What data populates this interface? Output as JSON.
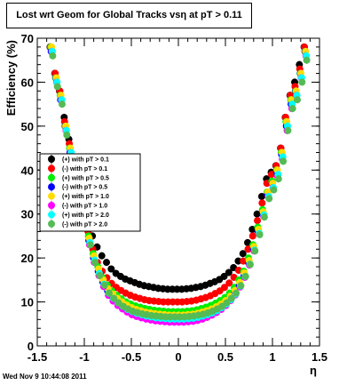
{
  "page": {
    "title": "Lost wrt Geom for Global Tracks vsη at pT > 0.11",
    "footer": "Wed Nov  9 10:44:08 2011"
  },
  "chart_data": {
    "type": "scatter",
    "title": "Lost wrt Geom for Global Tracks vsη at pT > 0.11",
    "xlabel": "η",
    "ylabel": "Efficiency (%)",
    "xlim": [
      -1.5,
      1.5
    ],
    "ylim": [
      0,
      70
    ],
    "xticks": [
      -1.5,
      -1,
      -0.5,
      0,
      0.5,
      1,
      1.5
    ],
    "xtick_labels": [
      "-1.5",
      "-1",
      "-0.5",
      "0",
      "0.5",
      "1",
      "1.5"
    ],
    "yticks": [
      0,
      10,
      20,
      30,
      40,
      50,
      60,
      70
    ],
    "ytick_labels": [
      "0",
      "10",
      "20",
      "30",
      "40",
      "50",
      "60",
      "70"
    ],
    "grid": false,
    "legend_position": "left-middle",
    "x": [
      -1.35,
      -1.3,
      -1.25,
      -1.2,
      -1.15,
      -1.1,
      -1.05,
      -1.0,
      -0.95,
      -0.9,
      -0.85,
      -0.8,
      -0.75,
      -0.7,
      -0.65,
      -0.6,
      -0.55,
      -0.5,
      -0.45,
      -0.4,
      -0.35,
      -0.3,
      -0.25,
      -0.2,
      -0.15,
      -0.1,
      -0.05,
      0.0,
      0.05,
      0.1,
      0.15,
      0.2,
      0.25,
      0.3,
      0.35,
      0.4,
      0.45,
      0.5,
      0.55,
      0.6,
      0.65,
      0.7,
      0.75,
      0.8,
      0.85,
      0.9,
      0.95,
      1.0,
      1.05,
      1.1,
      1.15,
      1.2,
      1.25,
      1.3,
      1.35
    ],
    "series": [
      {
        "name": "(+) with pT > 0.1",
        "color": "#000000",
        "values": [
          68,
          62,
          58,
          52,
          47,
          42,
          37,
          32,
          28,
          25,
          22.5,
          20.5,
          19,
          17.5,
          16.5,
          15.8,
          15.2,
          14.8,
          14.4,
          14,
          13.7,
          13.5,
          13.3,
          13.1,
          13,
          12.9,
          12.9,
          12.9,
          12.9,
          13,
          13.1,
          13.3,
          13.5,
          13.8,
          14.2,
          14.6,
          15.1,
          15.8,
          16.7,
          17.8,
          19.3,
          21,
          23.5,
          26.5,
          30,
          34,
          38,
          39.5,
          41,
          45,
          52,
          57,
          60,
          64,
          68
        ]
      },
      {
        "name": "(-) with pT > 0.1",
        "color": "#ff0000",
        "values": [
          68,
          62,
          58,
          51,
          46,
          41,
          35,
          30,
          26,
          22,
          19,
          17,
          15.5,
          14.2,
          13.3,
          12.6,
          12,
          11.5,
          11.1,
          10.8,
          10.5,
          10.3,
          10.2,
          10.1,
          10,
          10,
          10,
          10,
          10,
          10.1,
          10.2,
          10.4,
          10.7,
          11,
          11.4,
          11.9,
          12.5,
          13.3,
          14.3,
          15.6,
          17.2,
          19.3,
          22,
          25,
          28.5,
          32.5,
          37,
          39,
          41,
          45,
          52,
          57,
          59,
          63,
          68
        ]
      },
      {
        "name": "(+) with pT > 0.5",
        "color": "#00ee00",
        "values": [
          68,
          61,
          57,
          50,
          45,
          40,
          34,
          29,
          25,
          21,
          18,
          15.5,
          13.8,
          12.5,
          11.5,
          10.7,
          10,
          9.5,
          9.1,
          8.8,
          8.5,
          8.3,
          8.1,
          8,
          7.9,
          7.8,
          7.8,
          7.8,
          7.8,
          7.9,
          8,
          8.2,
          8.5,
          8.8,
          9.2,
          9.7,
          10.3,
          11,
          12,
          13.3,
          15,
          17,
          20,
          23,
          27,
          31,
          35,
          37.5,
          40,
          44,
          51,
          56,
          58,
          62,
          67
        ]
      },
      {
        "name": "(-) with pT > 0.5",
        "color": "#0000ff",
        "values": [
          67,
          61,
          56,
          50,
          44,
          39,
          33,
          28,
          24,
          20,
          17,
          14.5,
          12.5,
          11.2,
          10.2,
          9.4,
          8.8,
          8.3,
          7.9,
          7.6,
          7.3,
          7.1,
          6.9,
          6.8,
          6.7,
          6.6,
          6.6,
          6.6,
          6.6,
          6.7,
          6.8,
          7,
          7.2,
          7.5,
          7.9,
          8.4,
          9,
          9.8,
          10.8,
          12,
          13.8,
          16,
          18.8,
          22,
          26,
          30,
          34.5,
          37,
          39.5,
          43.5,
          50,
          55,
          58,
          62,
          67
        ]
      },
      {
        "name": "(+) with pT > 1.0",
        "color": "#ffdd00",
        "values": [
          68,
          61,
          57,
          50,
          45,
          40,
          34,
          29,
          24.5,
          20.5,
          17.5,
          15,
          13,
          11.8,
          10.8,
          10,
          9.3,
          8.7,
          8.3,
          8,
          7.7,
          7.5,
          7.3,
          7.2,
          7.1,
          7,
          7,
          7,
          7,
          7.1,
          7.2,
          7.4,
          7.7,
          8,
          8.4,
          8.9,
          9.5,
          10.3,
          11.3,
          12.6,
          14.4,
          16.6,
          19.4,
          22.6,
          26.5,
          30.5,
          35,
          37,
          40,
          44,
          51,
          56,
          58,
          62,
          67
        ]
      },
      {
        "name": "(-) with pT > 1.0",
        "color": "#ff00ff",
        "values": [
          67,
          60,
          56,
          49,
          44,
          38,
          32,
          27,
          23,
          19,
          16,
          13.5,
          11.5,
          10.2,
          9.2,
          8.4,
          7.7,
          7.1,
          6.7,
          6.4,
          6.1,
          5.9,
          5.7,
          5.6,
          5.5,
          5.4,
          5.4,
          5.4,
          5.4,
          5.5,
          5.6,
          5.8,
          6.1,
          6.5,
          7,
          7.6,
          8.3,
          9.2,
          10.3,
          11.6,
          13.4,
          15.6,
          18.4,
          21.6,
          25.5,
          29.5,
          34,
          36,
          38.5,
          42.5,
          49,
          54,
          57,
          61,
          66
        ]
      },
      {
        "name": "(+) with pT > 2.0",
        "color": "#00ffff",
        "values": [
          67,
          60,
          56,
          49,
          44,
          38.5,
          33,
          28,
          23.5,
          19.5,
          16.5,
          14,
          12,
          10.8,
          9.8,
          9,
          8.3,
          7.8,
          7.4,
          7.1,
          6.8,
          6.6,
          6.4,
          6.3,
          6.2,
          6.1,
          6.1,
          6.1,
          6.1,
          6.2,
          6.3,
          6.5,
          6.8,
          7.1,
          7.5,
          8,
          8.7,
          9.5,
          10.5,
          11.8,
          13.6,
          15.8,
          18.6,
          21.8,
          25.6,
          29.8,
          34,
          36,
          39,
          43,
          50,
          55,
          57,
          61,
          66
        ]
      },
      {
        "name": "(-) with pT > 2.0",
        "color": "#55bb55",
        "values": [
          66,
          59,
          55,
          48,
          43,
          38,
          32,
          27,
          23,
          19,
          16,
          13.8,
          12,
          10.8,
          9.8,
          9,
          8.4,
          7.9,
          7.6,
          7.3,
          7.1,
          6.9,
          6.8,
          6.7,
          6.6,
          6.6,
          6.6,
          6.6,
          6.6,
          6.7,
          6.8,
          7,
          7.2,
          7.5,
          7.9,
          8.4,
          9,
          9.8,
          10.8,
          12,
          13.7,
          15.8,
          18.5,
          21.6,
          25.3,
          29.3,
          33.5,
          35.5,
          38,
          42,
          49,
          54,
          56,
          60,
          65
        ]
      }
    ]
  }
}
